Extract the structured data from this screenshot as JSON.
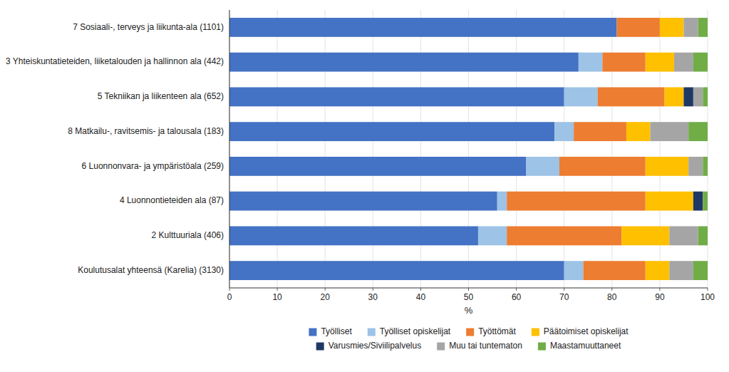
{
  "chart_data": {
    "type": "bar",
    "orientation": "horizontal",
    "stacked": true,
    "categories": [
      "7 Sosiaali-, terveys ja liikunta-ala (1101)",
      "3 Yhteiskuntatieteiden, liiketalouden ja hallinnon ala (442)",
      "5 Tekniikan ja liikenteen ala (652)",
      "8 Matkailu-, ravitsemis- ja talousala (183)",
      "6 Luonnonvara- ja ympäristöala (259)",
      "4 Luonnontieteiden ala (87)",
      "2 Kulttuuriala (406)",
      "Koulutusalat yhteensä (Karelia) (3130)"
    ],
    "series": [
      {
        "name": "Työlliset",
        "color": "#4472C4",
        "values": [
          81,
          73,
          70,
          68,
          62,
          56,
          52,
          70
        ]
      },
      {
        "name": "Työlliset opiskelijat",
        "color": "#9DC3E6",
        "values": [
          0,
          5,
          7,
          4,
          7,
          2,
          6,
          4
        ]
      },
      {
        "name": "Työttömät",
        "color": "#ED7D31",
        "values": [
          9,
          9,
          14,
          11,
          18,
          29,
          24,
          13
        ]
      },
      {
        "name": "Päätoimiset opiskelijat",
        "color": "#FFC000",
        "values": [
          5,
          6,
          4,
          5,
          9,
          10,
          10,
          5
        ]
      },
      {
        "name": "Varusmies/Siviilipalvelus",
        "color": "#203864",
        "values": [
          0,
          0,
          2,
          0,
          0,
          2,
          0,
          0
        ]
      },
      {
        "name": "Muu tai tuntematon",
        "color": "#A5A5A5",
        "values": [
          3,
          4,
          2,
          8,
          3,
          0,
          6,
          5
        ]
      },
      {
        "name": "Maastamuuttaneet",
        "color": "#70AD47",
        "values": [
          2,
          3,
          1,
          4,
          1,
          1,
          2,
          3
        ]
      }
    ],
    "xlabel": "%",
    "xlim": [
      0,
      100
    ],
    "xticks": [
      0,
      10,
      20,
      30,
      40,
      50,
      60,
      70,
      80,
      90,
      100
    ],
    "grid": true,
    "legend": "bottom"
  }
}
